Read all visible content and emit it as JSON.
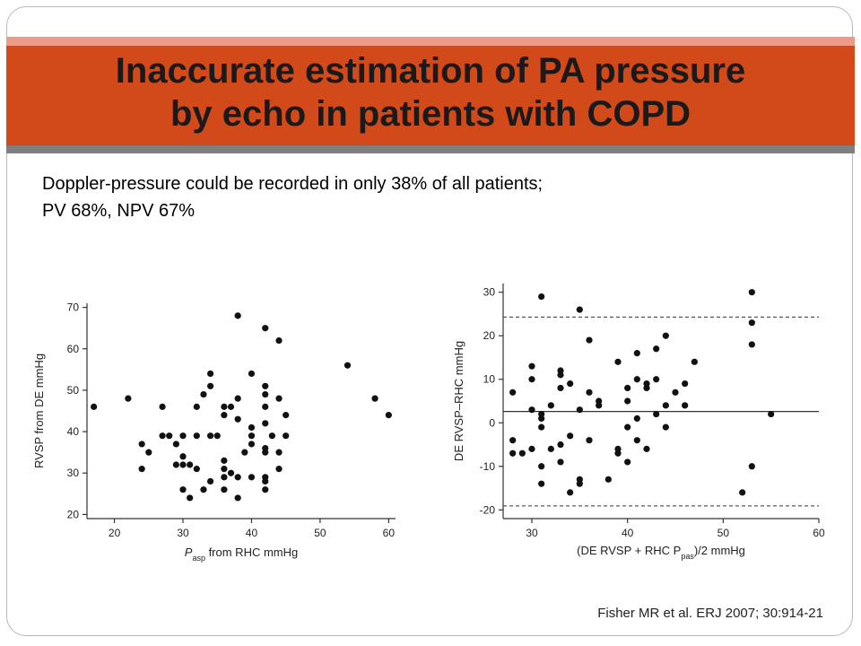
{
  "slide": {
    "title_line1": "Inaccurate estimation of PA pressure",
    "title_line2": "by echo in patients with COPD",
    "body_line1": "Doppler-pressure could be recorded in only 38% of all patients;",
    "body_line2": "PV 68%, NPV 67%",
    "citation": "Fisher MR et al. ERJ 2007; 30:914-21"
  },
  "colors": {
    "banner": "#d2491a",
    "banner_top_stripe": "#ef9a86",
    "banner_bottom_stripe": "#7f7f7f",
    "points": "#111111"
  },
  "chart_data": [
    {
      "type": "scatter",
      "title": "",
      "xlabel_prefix": "P",
      "xlabel_sub": "asp",
      "xlabel_rest": " from RHC mmHg",
      "ylabel": "RVSP from DE mmHg",
      "xlim": [
        16,
        61
      ],
      "ylim": [
        19,
        71
      ],
      "xticks": [
        "20",
        "30",
        "40",
        "50",
        "60"
      ],
      "yticks": [
        "20",
        "30",
        "40",
        "50",
        "60",
        "70"
      ],
      "xtick_values": [
        20,
        30,
        40,
        50,
        60
      ],
      "ytick_values": [
        20,
        30,
        40,
        50,
        60,
        70
      ],
      "points": [
        [
          17,
          46
        ],
        [
          22,
          48
        ],
        [
          24,
          37
        ],
        [
          24,
          31
        ],
        [
          25,
          35
        ],
        [
          27,
          46
        ],
        [
          27,
          39
        ],
        [
          28,
          39
        ],
        [
          29,
          37
        ],
        [
          29,
          32
        ],
        [
          30,
          39
        ],
        [
          30,
          34
        ],
        [
          30,
          32
        ],
        [
          30,
          26
        ],
        [
          31,
          32
        ],
        [
          31,
          24
        ],
        [
          32,
          39
        ],
        [
          32,
          31
        ],
        [
          32,
          46
        ],
        [
          33,
          26
        ],
        [
          33,
          49
        ],
        [
          34,
          51
        ],
        [
          34,
          54
        ],
        [
          34,
          28
        ],
        [
          34,
          39
        ],
        [
          35,
          39
        ],
        [
          36,
          29
        ],
        [
          36,
          31
        ],
        [
          36,
          33
        ],
        [
          36,
          26
        ],
        [
          36,
          44
        ],
        [
          36,
          46
        ],
        [
          37,
          46
        ],
        [
          37,
          30
        ],
        [
          38,
          68
        ],
        [
          38,
          48
        ],
        [
          38,
          43
        ],
        [
          38,
          29
        ],
        [
          38,
          24
        ],
        [
          39,
          35
        ],
        [
          40,
          54
        ],
        [
          40,
          41
        ],
        [
          40,
          39
        ],
        [
          40,
          37
        ],
        [
          40,
          29
        ],
        [
          42,
          65
        ],
        [
          42,
          51
        ],
        [
          42,
          49
        ],
        [
          42,
          46
        ],
        [
          42,
          42
        ],
        [
          42,
          36
        ],
        [
          42,
          35
        ],
        [
          42,
          29
        ],
        [
          42,
          28
        ],
        [
          42,
          26
        ],
        [
          43,
          39
        ],
        [
          44,
          62
        ],
        [
          44,
          48
        ],
        [
          44,
          35
        ],
        [
          44,
          31
        ],
        [
          45,
          44
        ],
        [
          45,
          39
        ],
        [
          54,
          56
        ],
        [
          58,
          48
        ],
        [
          60,
          44
        ]
      ]
    },
    {
      "type": "scatter",
      "title": "",
      "xlabel_prefix": "(DE RVSP + RHC P",
      "xlabel_sub": "pas",
      "xlabel_rest": ")/2 mmHg",
      "ylabel": "DE RVSP–RHC mmHg",
      "xlim": [
        27,
        60
      ],
      "ylim": [
        -22,
        32
      ],
      "xticks": [
        "30",
        "40",
        "50",
        "60"
      ],
      "yticks": [
        "30",
        "20",
        "10",
        "0",
        "-10",
        "-20"
      ],
      "xtick_values": [
        30,
        40,
        50,
        60
      ],
      "ytick_values": [
        30,
        20,
        10,
        0,
        -10,
        -20
      ],
      "reference_lines": [
        {
          "y": 2.6,
          "style": "solid"
        },
        {
          "y": 24.3,
          "style": "dashed"
        },
        {
          "y": -19.1,
          "style": "dashed"
        }
      ],
      "points": [
        [
          28,
          7
        ],
        [
          28,
          -7
        ],
        [
          28,
          -4
        ],
        [
          29,
          -7
        ],
        [
          30,
          10
        ],
        [
          30,
          3
        ],
        [
          30,
          -6
        ],
        [
          30,
          13
        ],
        [
          31,
          -10
        ],
        [
          31,
          -14
        ],
        [
          31,
          2
        ],
        [
          31,
          -1
        ],
        [
          31,
          1
        ],
        [
          31,
          29
        ],
        [
          32,
          4
        ],
        [
          32,
          -6
        ],
        [
          33,
          12
        ],
        [
          33,
          8
        ],
        [
          33,
          11
        ],
        [
          33,
          -5
        ],
        [
          33,
          -9
        ],
        [
          34,
          -16
        ],
        [
          34,
          -3
        ],
        [
          34,
          9
        ],
        [
          35,
          26
        ],
        [
          35,
          -14
        ],
        [
          35,
          -13
        ],
        [
          35,
          3
        ],
        [
          36,
          19
        ],
        [
          36,
          7
        ],
        [
          36,
          -4
        ],
        [
          37,
          5
        ],
        [
          37,
          4
        ],
        [
          38,
          -13
        ],
        [
          39,
          -7
        ],
        [
          39,
          -6
        ],
        [
          39,
          14
        ],
        [
          40,
          -9
        ],
        [
          40,
          -1
        ],
        [
          40,
          8
        ],
        [
          40,
          5
        ],
        [
          41,
          1
        ],
        [
          41,
          16
        ],
        [
          41,
          -4
        ],
        [
          41,
          10
        ],
        [
          42,
          8
        ],
        [
          42,
          9
        ],
        [
          42,
          -6
        ],
        [
          43,
          17
        ],
        [
          43,
          10
        ],
        [
          43,
          2
        ],
        [
          44,
          20
        ],
        [
          44,
          4
        ],
        [
          44,
          -1
        ],
        [
          45,
          7
        ],
        [
          46,
          4
        ],
        [
          46,
          9
        ],
        [
          47,
          14
        ],
        [
          52,
          -16
        ],
        [
          53,
          30
        ],
        [
          53,
          18
        ],
        [
          53,
          -10
        ],
        [
          53,
          23
        ],
        [
          55,
          2
        ]
      ]
    }
  ]
}
